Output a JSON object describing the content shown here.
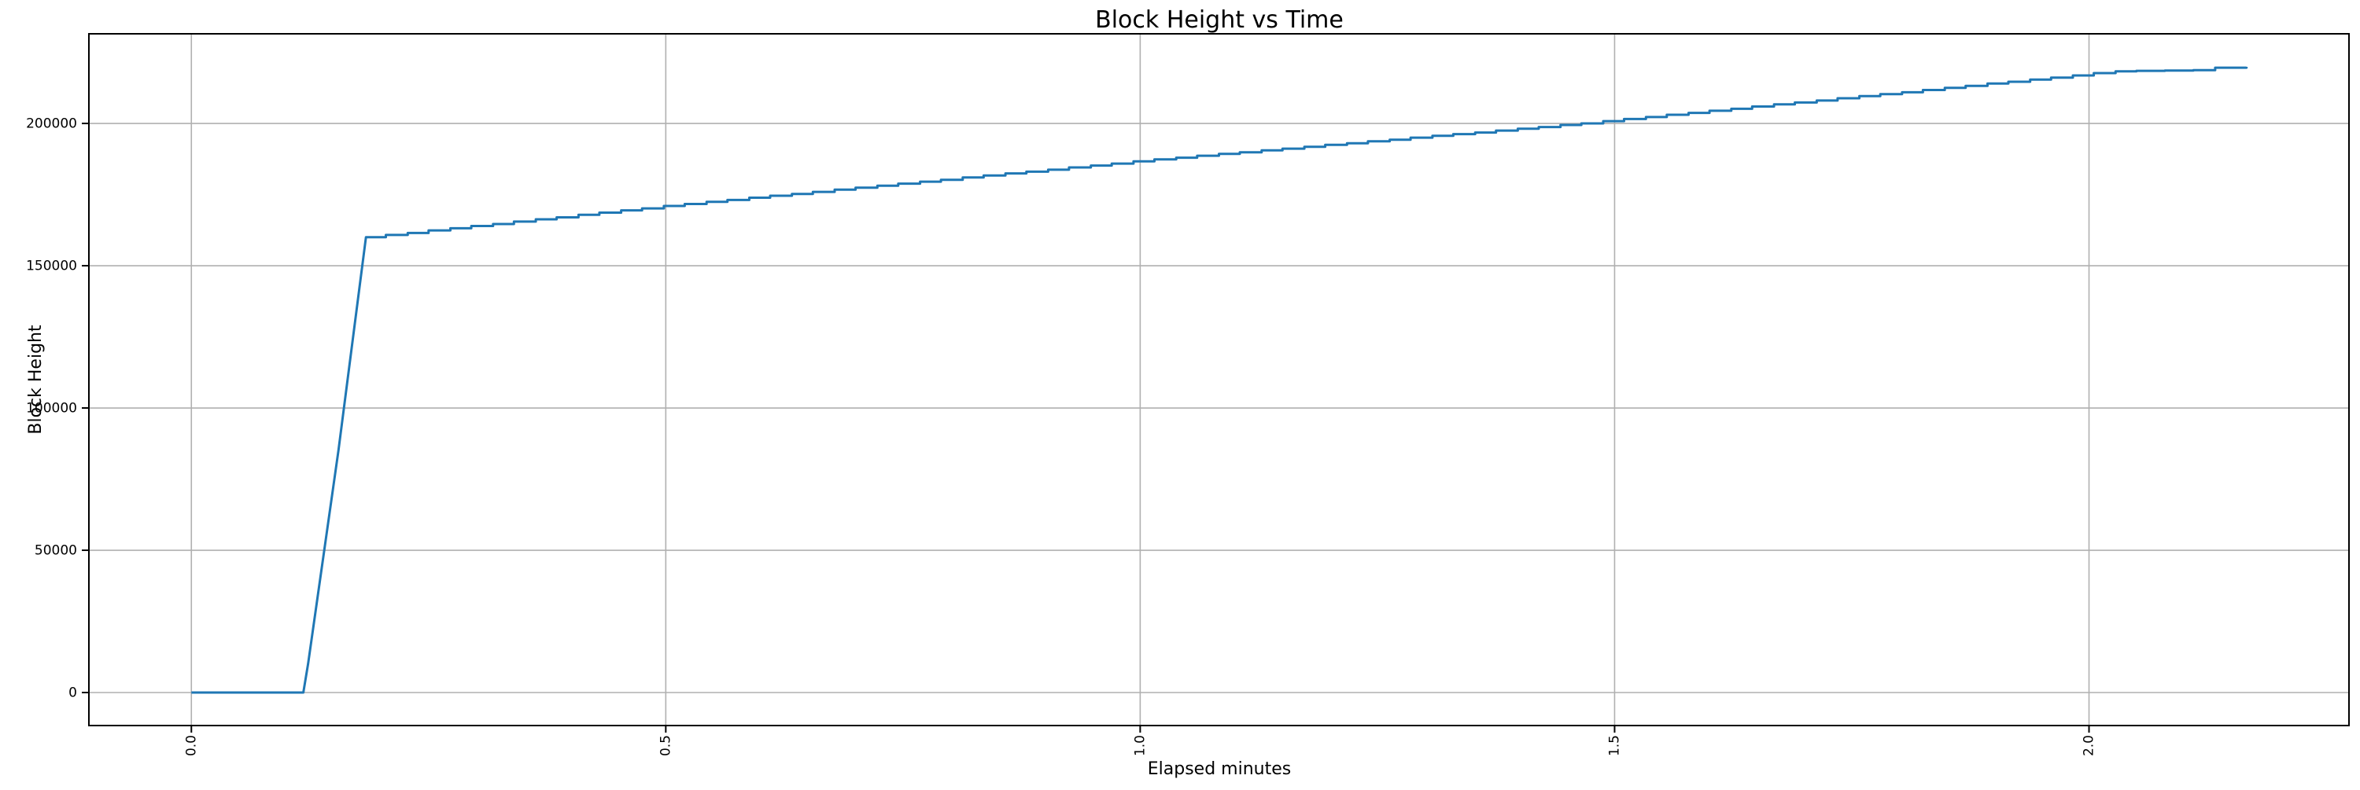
{
  "chart_data": {
    "type": "line",
    "title": "Block Height vs Time",
    "xlabel": "Elapsed minutes",
    "ylabel": "Block Height",
    "x_ticks": [
      0.0,
      0.5,
      1.0,
      1.5,
      2.0
    ],
    "x_tick_labels": [
      "0.0",
      "0.5",
      "1.0",
      "1.5",
      "2.0"
    ],
    "y_ticks": [
      0,
      50000,
      100000,
      150000,
      200000
    ],
    "y_tick_labels": [
      "0",
      "50000",
      "100000",
      "150000",
      "200000"
    ],
    "xlim": [
      -0.108,
      2.274
    ],
    "ylim": [
      -11600,
      231500
    ],
    "grid": true,
    "legend": "none",
    "line_color": "#1f77b4",
    "grid_color": "#b0b0b0",
    "spine_color": "#000000",
    "background_color": "#ffffff",
    "series": [
      {
        "name": "Block Height",
        "points": [
          [
            0.0,
            0
          ],
          [
            0.118,
            0
          ],
          [
            0.123,
            10000
          ],
          [
            0.155,
            85000
          ],
          [
            0.184,
            160000
          ],
          [
            0.205,
            160800
          ],
          [
            0.228,
            161500
          ],
          [
            0.25,
            162400
          ],
          [
            0.273,
            163150
          ],
          [
            0.295,
            163950
          ],
          [
            0.318,
            164650
          ],
          [
            0.34,
            165500
          ],
          [
            0.363,
            166300
          ],
          [
            0.385,
            167000
          ],
          [
            0.408,
            167900
          ],
          [
            0.43,
            168650
          ],
          [
            0.453,
            169450
          ],
          [
            0.475,
            170150
          ],
          [
            0.498,
            171000
          ],
          [
            0.52,
            171700
          ],
          [
            0.543,
            172450
          ],
          [
            0.565,
            173100
          ],
          [
            0.588,
            173900
          ],
          [
            0.61,
            174600
          ],
          [
            0.633,
            175200
          ],
          [
            0.655,
            175950
          ],
          [
            0.678,
            176750
          ],
          [
            0.7,
            177400
          ],
          [
            0.723,
            178100
          ],
          [
            0.745,
            178850
          ],
          [
            0.768,
            179550
          ],
          [
            0.79,
            180200
          ],
          [
            0.813,
            181000
          ],
          [
            0.835,
            181700
          ],
          [
            0.858,
            182450
          ],
          [
            0.88,
            183050
          ],
          [
            0.903,
            183750
          ],
          [
            0.925,
            184550
          ],
          [
            0.948,
            185200
          ],
          [
            0.97,
            185900
          ],
          [
            0.993,
            186700
          ],
          [
            1.015,
            187350
          ],
          [
            1.038,
            187950
          ],
          [
            1.06,
            188650
          ],
          [
            1.083,
            189300
          ],
          [
            1.105,
            189850
          ],
          [
            1.128,
            190550
          ],
          [
            1.15,
            191150
          ],
          [
            1.173,
            191800
          ],
          [
            1.195,
            192500
          ],
          [
            1.218,
            193050
          ],
          [
            1.24,
            193700
          ],
          [
            1.263,
            194300
          ],
          [
            1.285,
            195000
          ],
          [
            1.308,
            195650
          ],
          [
            1.33,
            196250
          ],
          [
            1.353,
            196800
          ],
          [
            1.375,
            197500
          ],
          [
            1.398,
            198150
          ],
          [
            1.42,
            198750
          ],
          [
            1.443,
            199450
          ],
          [
            1.465,
            200000
          ],
          [
            1.488,
            200800
          ],
          [
            1.51,
            201550
          ],
          [
            1.533,
            202250
          ],
          [
            1.555,
            203050
          ],
          [
            1.578,
            203700
          ],
          [
            1.6,
            204450
          ],
          [
            1.623,
            205150
          ],
          [
            1.645,
            205950
          ],
          [
            1.668,
            206700
          ],
          [
            1.69,
            207350
          ],
          [
            1.713,
            208050
          ],
          [
            1.735,
            208850
          ],
          [
            1.758,
            209600
          ],
          [
            1.78,
            210300
          ],
          [
            1.803,
            210950
          ],
          [
            1.825,
            211750
          ],
          [
            1.848,
            212500
          ],
          [
            1.87,
            213200
          ],
          [
            1.893,
            214000
          ],
          [
            1.915,
            214650
          ],
          [
            1.938,
            215400
          ],
          [
            1.96,
            216100
          ],
          [
            1.983,
            216850
          ],
          [
            2.005,
            217700
          ],
          [
            2.028,
            218300
          ],
          [
            2.05,
            218500
          ],
          [
            2.08,
            218600
          ],
          [
            2.11,
            218700
          ],
          [
            2.133,
            219600
          ],
          [
            2.166,
            219900
          ]
        ]
      }
    ]
  }
}
